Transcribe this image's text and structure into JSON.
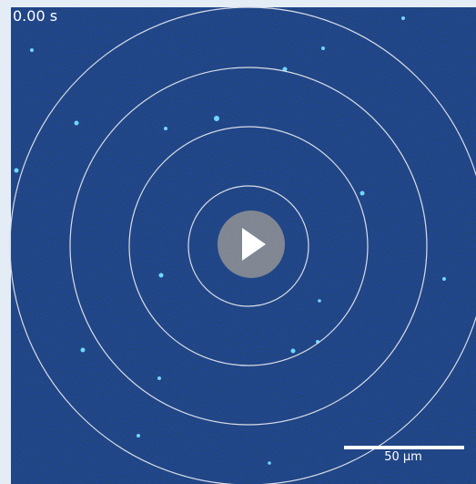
{
  "video": {
    "timestamp": "0.00 s",
    "scale_bar_label": "50 µm"
  }
}
